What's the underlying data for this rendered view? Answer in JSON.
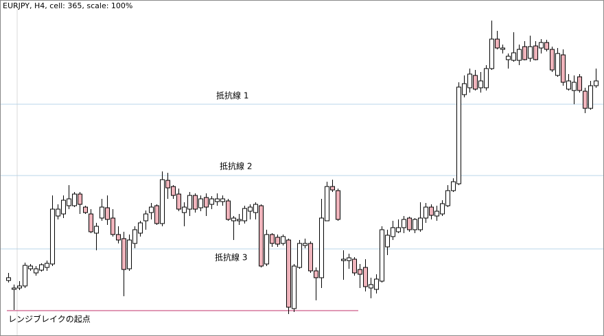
{
  "chart_data": {
    "type": "candlestick",
    "title": "EURJPY, H4, cell: 365, scale: 100%",
    "ylim": [
      0,
      490
    ],
    "up_color": "#ffffff",
    "down_color": "#f0b4bc",
    "wick_color": "#000000",
    "open": [
      81,
      68,
      70,
      73,
      98,
      92,
      96,
      100,
      105,
      175,
      178,
      190,
      190,
      207,
      188,
      178,
      150,
      172,
      187,
      172,
      148,
      142,
      98,
      135,
      150,
      168,
      180,
      190,
      164,
      227,
      218,
      207,
      180,
      185,
      205,
      187,
      202,
      192,
      196,
      196,
      197,
      168,
      168,
      168,
      182,
      180,
      190,
      105,
      148,
      144,
      135,
      140,
      40,
      100,
      132,
      135,
      95,
      85,
      168,
      218,
      212,
      110,
      110,
      112,
      97,
      100,
      70,
      68,
      80,
      130,
      145,
      152,
      158,
      172,
      155,
      155,
      172,
      188,
      175,
      178,
      190,
      212,
      222,
      352,
      362,
      380,
      362,
      362,
      390,
      433,
      418,
      403,
      402,
      402,
      422,
      405,
      423,
      420,
      428,
      418,
      380,
      410,
      360,
      358,
      378,
      357,
      332,
      365
    ],
    "high": [
      92,
      75,
      80,
      107,
      105,
      102,
      106,
      110,
      205,
      192,
      205,
      220,
      210,
      210,
      190,
      185,
      165,
      200,
      205,
      185,
      160,
      152,
      148,
      160,
      168,
      183,
      194,
      192,
      240,
      238,
      220,
      215,
      195,
      210,
      208,
      205,
      208,
      204,
      208,
      205,
      200,
      175,
      178,
      190,
      192,
      195,
      192,
      155,
      150,
      148,
      148,
      142,
      105,
      140,
      142,
      138,
      100,
      200,
      225,
      228,
      215,
      125,
      120,
      115,
      105,
      112,
      85,
      90,
      160,
      155,
      168,
      170,
      175,
      174,
      172,
      195,
      194,
      192,
      190,
      198,
      220,
      230,
      370,
      380,
      390,
      388,
      385,
      395,
      460,
      445,
      425,
      412,
      443,
      425,
      430,
      438,
      430,
      433,
      432,
      422,
      420,
      418,
      382,
      380,
      382,
      362,
      372,
      390
    ],
    "low": [
      78,
      38,
      67,
      70,
      95,
      88,
      94,
      95,
      102,
      170,
      172,
      185,
      188,
      178,
      178,
      150,
      125,
      168,
      162,
      145,
      135,
      58,
      95,
      128,
      145,
      155,
      170,
      162,
      160,
      200,
      200,
      182,
      160,
      175,
      180,
      182,
      175,
      185,
      190,
      190,
      168,
      140,
      162,
      164,
      170,
      170,
      100,
      102,
      130,
      130,
      132,
      32,
      35,
      98,
      128,
      92,
      52,
      70,
      168,
      210,
      168,
      82,
      98,
      88,
      70,
      65,
      55,
      62,
      78,
      118,
      140,
      150,
      150,
      152,
      150,
      152,
      165,
      170,
      168,
      175,
      188,
      210,
      220,
      348,
      355,
      358,
      355,
      358,
      388,
      418,
      412,
      390,
      400,
      395,
      402,
      400,
      402,
      412,
      415,
      385,
      378,
      365,
      358,
      338,
      355,
      325,
      330,
      362
    ],
    "close": [
      85,
      70,
      73,
      103,
      102,
      98,
      104,
      106,
      185,
      185,
      198,
      200,
      207,
      192,
      180,
      152,
      160,
      188,
      170,
      148,
      140,
      97,
      140,
      155,
      165,
      178,
      188,
      164,
      228,
      216,
      205,
      185,
      188,
      205,
      185,
      200,
      188,
      200,
      200,
      200,
      170,
      172,
      170,
      186,
      188,
      192,
      102,
      148,
      135,
      134,
      145,
      42,
      102,
      135,
      135,
      95,
      85,
      172,
      218,
      213,
      170,
      112,
      114,
      92,
      90,
      72,
      75,
      83,
      155,
      147,
      158,
      158,
      170,
      155,
      170,
      172,
      188,
      176,
      182,
      193,
      212,
      225,
      363,
      368,
      382,
      360,
      372,
      390,
      433,
      420,
      420,
      408,
      413,
      418,
      403,
      422,
      403,
      428,
      418,
      388,
      412,
      370,
      372,
      370,
      358,
      332,
      365,
      372
    ],
    "levels": [
      {
        "label": "抵抗線 1",
        "value": 338,
        "color": "#b8d4e8"
      },
      {
        "label": "抵抗線 2",
        "value": 234,
        "color": "#b8d4e8"
      },
      {
        "label": "抵抗線 3",
        "value": 127,
        "color": "#b8d4e8"
      },
      {
        "label": "レンジブレイクの起点",
        "value": 37,
        "color": "#c0306a"
      }
    ]
  }
}
